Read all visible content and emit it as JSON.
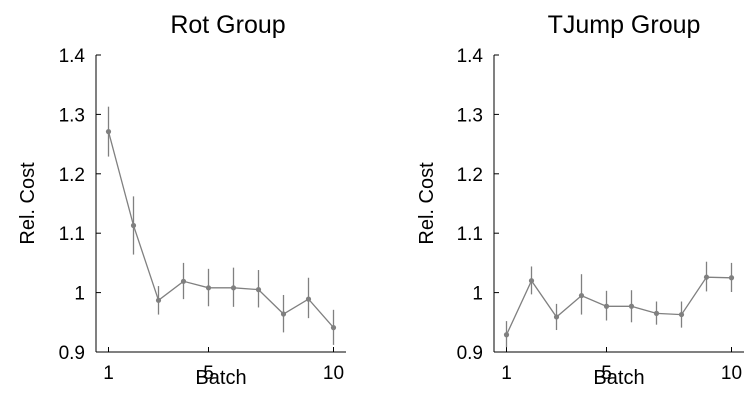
{
  "chart_data": [
    {
      "type": "line",
      "title": "Rot Group",
      "xlabel": "Batch",
      "ylabel": "Rel. Cost",
      "xlim": [
        0.5,
        10.5
      ],
      "ylim": [
        0.9,
        1.4
      ],
      "xticks": [
        1,
        5,
        10
      ],
      "xtick_labels": [
        "1",
        "5",
        "10"
      ],
      "yticks": [
        0.9,
        1.0,
        1.1,
        1.2,
        1.3,
        1.4
      ],
      "ytick_labels": [
        "0.9",
        "1",
        "1.1",
        "1.2",
        "1.3",
        "1.4"
      ],
      "grid": false,
      "color": "#808080",
      "series": [
        {
          "x": [
            1,
            2,
            3,
            4,
            5,
            6,
            7,
            8,
            9,
            10
          ],
          "y": [
            1.271,
            1.113,
            0.987,
            1.019,
            1.008,
            1.008,
            1.005,
            0.964,
            0.989,
            0.941
          ],
          "err_low": [
            1.229,
            1.064,
            0.963,
            0.989,
            0.977,
            0.976,
            0.975,
            0.933,
            0.957,
            0.912
          ],
          "err_high": [
            1.313,
            1.162,
            1.011,
            1.05,
            1.04,
            1.042,
            1.038,
            0.996,
            1.025,
            0.971
          ]
        }
      ]
    },
    {
      "type": "line",
      "title": "TJump Group",
      "xlabel": "Batch",
      "ylabel": "Rel. Cost",
      "xlim": [
        0.5,
        10.5
      ],
      "ylim": [
        0.9,
        1.4
      ],
      "xticks": [
        1,
        5,
        10
      ],
      "xtick_labels": [
        "1",
        "5",
        "10"
      ],
      "yticks": [
        0.9,
        1.0,
        1.1,
        1.2,
        1.3,
        1.4
      ],
      "ytick_labels": [
        "0.9",
        "1",
        "1.1",
        "1.2",
        "1.3",
        "1.4"
      ],
      "grid": false,
      "color": "#808080",
      "series": [
        {
          "x": [
            1,
            2,
            3,
            4,
            5,
            6,
            7,
            8,
            9,
            10
          ],
          "y": [
            0.929,
            1.02,
            0.959,
            0.995,
            0.977,
            0.977,
            0.965,
            0.963,
            1.026,
            1.025
          ],
          "err_low": [
            0.908,
            0.997,
            0.937,
            0.963,
            0.953,
            0.95,
            0.946,
            0.941,
            1.002,
            1.001
          ],
          "err_high": [
            0.952,
            1.044,
            0.981,
            1.031,
            1.003,
            1.004,
            0.985,
            0.985,
            1.052,
            1.05
          ]
        }
      ]
    }
  ]
}
